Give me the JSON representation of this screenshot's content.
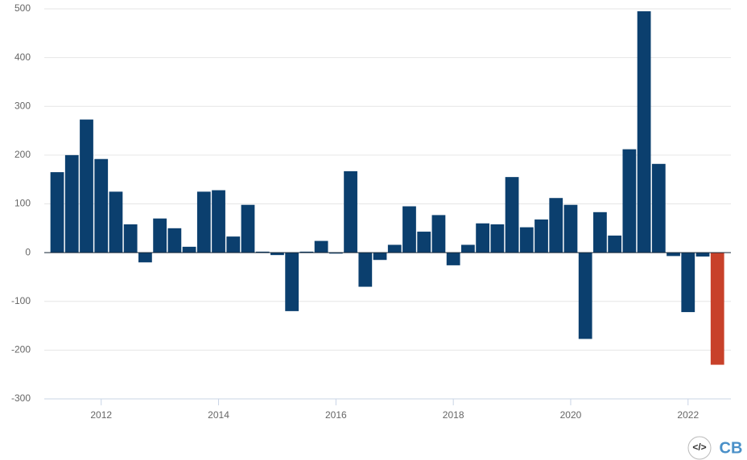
{
  "chart_data": {
    "type": "bar",
    "x": [
      2011.25,
      2011.5,
      2011.75,
      2012,
      2012.25,
      2012.5,
      2012.75,
      2013,
      2013.25,
      2013.5,
      2013.75,
      2014,
      2014.25,
      2014.5,
      2014.75,
      2015,
      2015.25,
      2015.5,
      2015.75,
      2016,
      2016.25,
      2016.5,
      2016.75,
      2017,
      2017.25,
      2017.5,
      2017.75,
      2018,
      2018.25,
      2018.5,
      2018.75,
      2019,
      2019.25,
      2019.5,
      2019.75,
      2020,
      2020.25,
      2020.5,
      2020.75,
      2021,
      2021.25,
      2021.5,
      2021.75,
      2022,
      2022.25,
      2022.5
    ],
    "values": [
      165,
      200,
      273,
      192,
      125,
      58,
      -20,
      70,
      50,
      12,
      125,
      128,
      33,
      98,
      2,
      -5,
      -120,
      2,
      24,
      -2,
      167,
      -70,
      -15,
      16,
      95,
      43,
      77,
      -26,
      16,
      60,
      58,
      155,
      52,
      68,
      112,
      98,
      -177,
      83,
      35,
      212,
      495,
      182,
      -7,
      -122,
      -8,
      -230
    ],
    "colors": [
      "#0b3f6e",
      "#0b3f6e",
      "#0b3f6e",
      "#0b3f6e",
      "#0b3f6e",
      "#0b3f6e",
      "#0b3f6e",
      "#0b3f6e",
      "#0b3f6e",
      "#0b3f6e",
      "#0b3f6e",
      "#0b3f6e",
      "#0b3f6e",
      "#0b3f6e",
      "#0b3f6e",
      "#0b3f6e",
      "#0b3f6e",
      "#0b3f6e",
      "#0b3f6e",
      "#0b3f6e",
      "#0b3f6e",
      "#0b3f6e",
      "#0b3f6e",
      "#0b3f6e",
      "#0b3f6e",
      "#0b3f6e",
      "#0b3f6e",
      "#0b3f6e",
      "#0b3f6e",
      "#0b3f6e",
      "#0b3f6e",
      "#0b3f6e",
      "#0b3f6e",
      "#0b3f6e",
      "#0b3f6e",
      "#0b3f6e",
      "#0b3f6e",
      "#0b3f6e",
      "#0b3f6e",
      "#0b3f6e",
      "#0b3f6e",
      "#0b3f6e",
      "#0b3f6e",
      "#0b3f6e",
      "#0b3f6e",
      "#c8412a"
    ],
    "xlim": [
      2011.03,
      2022.73
    ],
    "xticks": [
      2012,
      2014,
      2016,
      2018,
      2020,
      2022
    ],
    "ylim": [
      -300,
      500
    ],
    "yticks": [
      -300,
      -200,
      -100,
      0,
      100,
      200,
      300,
      400,
      500
    ],
    "grid": true
  },
  "footer": {
    "embed_icon": "</>",
    "logo": "CB"
  }
}
